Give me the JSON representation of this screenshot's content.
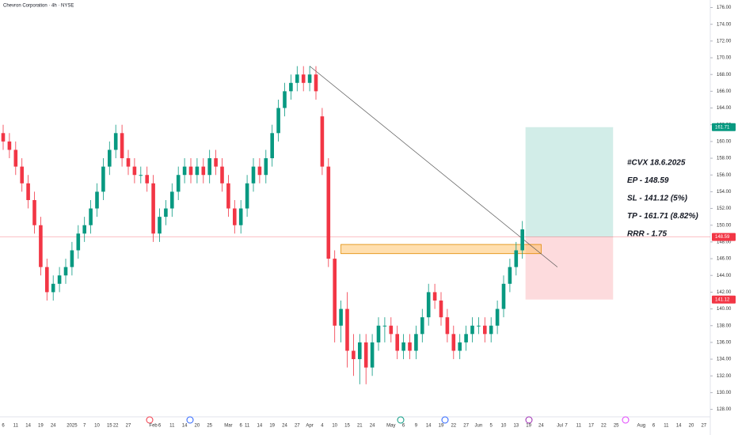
{
  "chart_data": {
    "type": "candlestick",
    "title": "Chevron Corporation · 4h · NYSE",
    "categories": [
      "6",
      null,
      "11",
      null,
      "14",
      null,
      "19",
      null,
      "24",
      null,
      null,
      "2025",
      null,
      "7",
      null,
      "10",
      null,
      "15",
      "22",
      null,
      "27",
      null,
      null,
      null,
      "Feb",
      "6",
      null,
      "11",
      null,
      "14",
      null,
      "20",
      null,
      "25",
      null,
      null,
      "Mar",
      null,
      "6",
      "11",
      null,
      "14",
      null,
      "19",
      null,
      "24",
      null,
      "27",
      null,
      "Apr",
      null,
      "4",
      null,
      "10",
      null,
      "15",
      null,
      "21",
      null,
      "24",
      null,
      null,
      "May",
      null,
      "6",
      null,
      "9",
      null,
      "14",
      null,
      "19",
      null,
      "22",
      null,
      "27",
      null,
      "Jun",
      null,
      "5",
      null,
      "10",
      null,
      "13",
      null,
      "19",
      null,
      "24",
      null,
      null,
      "Jul",
      "7",
      null,
      "11",
      null,
      "17",
      null,
      "22",
      null,
      "25",
      null,
      null,
      null,
      "Aug",
      null,
      "6",
      null,
      "11",
      null,
      "14",
      null,
      "20",
      null,
      "27"
    ],
    "open": [
      161,
      160,
      159,
      157,
      155,
      153,
      150,
      145,
      142,
      143,
      144,
      145,
      147,
      149,
      150,
      152,
      154,
      157,
      159,
      161,
      158,
      157,
      156,
      156,
      155,
      149,
      151,
      152,
      154,
      156,
      157,
      156,
      157,
      156,
      158,
      157,
      155,
      152,
      150,
      152,
      155,
      157,
      156,
      158,
      161,
      164,
      166,
      167,
      168,
      167,
      168,
      163,
      157,
      146,
      138,
      140,
      135,
      134,
      136,
      133,
      136,
      138,
      138,
      137,
      135,
      136,
      135,
      137,
      139,
      142,
      141,
      139,
      137,
      135,
      136,
      137,
      138,
      138,
      137,
      138,
      140,
      143,
      145,
      147,
      null,
      null,
      null,
      null,
      null,
      null,
      null,
      null,
      null,
      null,
      null,
      null,
      null,
      null,
      null,
      null,
      null,
      null,
      null,
      null,
      null,
      null,
      null,
      null,
      null,
      null,
      null,
      null,
      null
    ],
    "high": [
      162,
      161,
      160,
      158,
      156,
      154,
      151,
      146,
      144,
      145,
      146,
      148,
      150,
      151,
      153,
      155,
      158,
      160,
      162,
      162,
      159,
      158,
      157,
      157,
      156,
      152,
      153,
      155,
      157,
      158,
      158,
      158,
      158,
      159,
      159,
      158,
      156,
      153,
      153,
      156,
      158,
      158,
      159,
      162,
      165,
      167,
      168,
      169,
      169,
      169,
      169,
      164,
      158,
      147,
      141,
      142,
      137,
      137,
      137,
      137,
      139,
      139,
      139,
      138,
      137,
      137,
      138,
      140,
      143,
      143,
      142,
      140,
      138,
      137,
      138,
      139,
      139,
      139,
      139,
      141,
      144,
      146,
      148,
      150.5,
      null,
      null,
      null,
      null,
      null,
      null,
      null,
      null,
      null,
      null,
      null,
      null,
      null,
      null,
      null,
      null,
      null,
      null,
      null,
      null,
      null,
      null,
      null,
      null,
      null,
      null,
      null,
      null,
      null
    ],
    "low": [
      159,
      158,
      156,
      154,
      152,
      149,
      144,
      141,
      141,
      142,
      143,
      144,
      146,
      148,
      149,
      151,
      153,
      156,
      158,
      157,
      156,
      155,
      155,
      154,
      148,
      148,
      150,
      151,
      153,
      155,
      155,
      155,
      155,
      155,
      156,
      154,
      151,
      149,
      149,
      151,
      154,
      155,
      155,
      157,
      160,
      163,
      165,
      166,
      166,
      166,
      165,
      156,
      145,
      136,
      136,
      133,
      132,
      131,
      131,
      132,
      135,
      136,
      136,
      134,
      134,
      134,
      134,
      136,
      138,
      140,
      138,
      136,
      134,
      134,
      135,
      136,
      137,
      136,
      136,
      137,
      139,
      142,
      144,
      146,
      null,
      null,
      null,
      null,
      null,
      null,
      null,
      null,
      null,
      null,
      null,
      null,
      null,
      null,
      null,
      null,
      null,
      null,
      null,
      null,
      null,
      null,
      null,
      null,
      null,
      null,
      null,
      null,
      null
    ],
    "close": [
      160,
      159,
      157,
      155,
      153,
      150,
      145,
      142,
      143,
      144,
      145,
      147,
      149,
      150,
      152,
      154,
      157,
      159,
      161,
      158,
      157,
      156,
      156,
      155,
      149,
      151,
      152,
      154,
      156,
      157,
      156,
      157,
      156,
      158,
      157,
      155,
      152,
      150,
      152,
      155,
      157,
      156,
      158,
      161,
      164,
      166,
      167,
      168,
      167,
      168,
      166,
      157,
      146,
      138,
      140,
      135,
      134,
      136,
      133,
      136,
      138,
      138,
      137,
      135,
      136,
      135,
      137,
      139,
      142,
      141,
      139,
      137,
      135,
      136,
      137,
      138,
      138,
      137,
      138,
      140,
      143,
      145,
      147,
      149.5,
      null,
      null,
      null,
      null,
      null,
      null,
      null,
      null,
      null,
      null,
      null,
      null,
      null,
      null,
      null,
      null,
      null,
      null,
      null,
      null,
      null,
      null,
      null,
      null,
      null,
      null,
      null,
      null,
      null
    ],
    "up_color": "#089981",
    "down_color": "#f23645",
    "ylim": [
      127.3,
      176.9
    ],
    "yticks": [
      {
        "value": 128,
        "label": "128.00"
      },
      {
        "value": 130,
        "label": "130.00"
      },
      {
        "value": 132,
        "label": "132.00"
      },
      {
        "value": 134,
        "label": "134.00"
      },
      {
        "value": 136,
        "label": "136.00"
      },
      {
        "value": 138,
        "label": "138.00"
      },
      {
        "value": 140,
        "label": "140.00"
      },
      {
        "value": 142,
        "label": "142.00"
      },
      {
        "value": 144,
        "label": "144.00"
      },
      {
        "value": 146,
        "label": "146.00"
      },
      {
        "value": 148,
        "label": "148.00"
      },
      {
        "value": 150,
        "label": "150.00"
      },
      {
        "value": 152,
        "label": "152.00"
      },
      {
        "value": 154,
        "label": "154.00"
      },
      {
        "value": 156,
        "label": "156.00"
      },
      {
        "value": 158,
        "label": "158.00"
      },
      {
        "value": 160,
        "label": "160.00"
      },
      {
        "value": 162,
        "label": "162.00"
      },
      {
        "value": 164,
        "label": "164.00"
      },
      {
        "value": 166,
        "label": "166.00"
      },
      {
        "value": 168,
        "label": "168.00"
      },
      {
        "value": 170,
        "label": "170.00"
      },
      {
        "value": 172,
        "label": "172.00"
      },
      {
        "value": 174,
        "label": "174.00"
      },
      {
        "value": 176,
        "label": "176.00"
      }
    ],
    "position": {
      "entry": 148.59,
      "target": 161.71,
      "stop": 141.12,
      "from_index": 83.5,
      "to_index": 97.5
    },
    "zone": {
      "top": 147.7,
      "bottom": 146.6,
      "from_index": 54,
      "to_index": 86
    },
    "trendline": {
      "from_index": 49,
      "from_value": 169,
      "to_index": 88.6,
      "to_value": 145
    },
    "annotations": [
      "#CVX 18.6.2025",
      "EP - 148.59",
      "SL - 141.12 (5%)",
      "TP - 161.71 (8.82%)",
      "RRR - 1.75"
    ]
  }
}
